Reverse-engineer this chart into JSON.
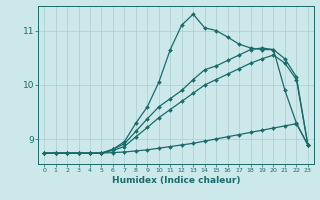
{
  "xlabel": "Humidex (Indice chaleur)",
  "bg_color": "#cce8ea",
  "grid_color": "#aacccc",
  "line_color": "#1a6b6b",
  "xlim": [
    -0.5,
    23.5
  ],
  "ylim": [
    8.55,
    11.45
  ],
  "yticks": [
    9,
    10,
    11
  ],
  "xticks": [
    0,
    1,
    2,
    3,
    4,
    5,
    6,
    7,
    8,
    9,
    10,
    11,
    12,
    13,
    14,
    15,
    16,
    17,
    18,
    19,
    20,
    21,
    22,
    23
  ],
  "series1_x": [
    0,
    1,
    2,
    3,
    4,
    5,
    6,
    7,
    8,
    9,
    10,
    11,
    12,
    13,
    14,
    15,
    16,
    17,
    18,
    19,
    20,
    21,
    22,
    23
  ],
  "series1_y": [
    8.75,
    8.75,
    8.75,
    8.75,
    8.75,
    8.75,
    8.76,
    8.77,
    8.79,
    8.81,
    8.84,
    8.87,
    8.9,
    8.93,
    8.97,
    9.01,
    9.05,
    9.09,
    9.13,
    9.17,
    9.21,
    9.25,
    9.29,
    8.9
  ],
  "series2_x": [
    0,
    1,
    2,
    3,
    4,
    5,
    6,
    7,
    8,
    9,
    10,
    11,
    12,
    13,
    14,
    15,
    16,
    17,
    18,
    19,
    20,
    21,
    22,
    23
  ],
  "series2_y": [
    8.75,
    8.75,
    8.75,
    8.75,
    8.75,
    8.75,
    8.8,
    8.87,
    9.05,
    9.22,
    9.4,
    9.55,
    9.7,
    9.85,
    10.0,
    10.1,
    10.2,
    10.3,
    10.4,
    10.48,
    10.55,
    10.4,
    10.1,
    8.9
  ],
  "series3_x": [
    0,
    1,
    2,
    3,
    4,
    5,
    6,
    7,
    8,
    9,
    10,
    11,
    12,
    13,
    14,
    15,
    16,
    17,
    18,
    19,
    20,
    21,
    22,
    23
  ],
  "series3_y": [
    8.75,
    8.75,
    8.75,
    8.75,
    8.75,
    8.75,
    8.82,
    8.92,
    9.15,
    9.38,
    9.6,
    9.75,
    9.9,
    10.1,
    10.28,
    10.35,
    10.45,
    10.55,
    10.65,
    10.68,
    10.65,
    10.48,
    10.15,
    8.9
  ],
  "series4_x": [
    0,
    1,
    2,
    3,
    4,
    5,
    6,
    7,
    8,
    9,
    10,
    11,
    12,
    13,
    14,
    15,
    16,
    17,
    18,
    19,
    20,
    21,
    22,
    23
  ],
  "series4_y": [
    8.75,
    8.75,
    8.75,
    8.75,
    8.75,
    8.75,
    8.82,
    8.96,
    9.3,
    9.6,
    10.05,
    10.65,
    11.1,
    11.3,
    11.05,
    11.0,
    10.88,
    10.75,
    10.68,
    10.65,
    10.65,
    9.9,
    9.3,
    8.9
  ]
}
